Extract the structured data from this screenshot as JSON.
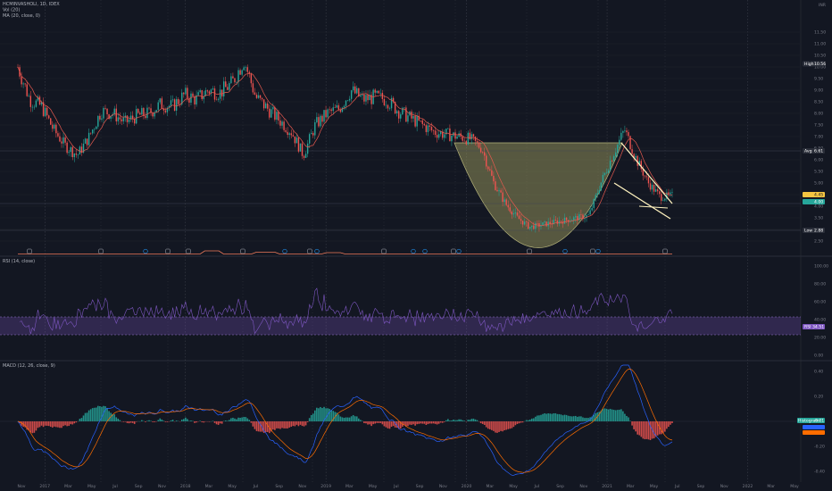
{
  "header": {
    "symbol": "HCMINVASHOLI, 1D, IDEX",
    "volume_indicator": "Vol (20)",
    "ma_indicator": "MA (20, close, 0)",
    "currency": "INR"
  },
  "price_axis": {
    "ticks": [
      "11.50",
      "11.00",
      "10.50",
      "10.00",
      "9.50",
      "9.00",
      "8.50",
      "8.00",
      "7.50",
      "7.00",
      "6.50",
      "6.00",
      "5.50",
      "5.00",
      "4.50",
      "4.00",
      "3.50",
      "3.00",
      "2.50"
    ],
    "high_label": "High",
    "high_value": "10.56",
    "avg_label": "Avg",
    "avg_value": "6.61",
    "last_value": "4.45",
    "close_value": "4.00",
    "low_label": "Low",
    "low_value": "2.88"
  },
  "rsi": {
    "title": "RSI (14, close)",
    "ticks": [
      "100.00",
      "80.00",
      "60.00",
      "40.00",
      "20.00",
      "0.00"
    ],
    "value_label": "RSI",
    "value": "34.51",
    "color": "#7e57c2"
  },
  "macd": {
    "title": "MACD (12, 26, close, 9)",
    "ticks": [
      "0.40",
      "0.20",
      "0.00",
      "-0.20",
      "-0.40"
    ],
    "histogram_label": "Histogram",
    "histogram_value": "0.01",
    "macd_color": "#2962ff",
    "signal_color": "#ff6d00",
    "hist_up_color": "#26a69a",
    "hist_down_color": "#ef5350"
  },
  "x_axis": {
    "labels": [
      "Nov",
      "2017",
      "Mar",
      "May",
      "Jul",
      "Sep",
      "Nov",
      "2018",
      "Mar",
      "May",
      "Jul",
      "Sep",
      "Nov",
      "2019",
      "Mar",
      "May",
      "Jul",
      "Sep",
      "Nov",
      "2020",
      "Mar",
      "May",
      "Jul",
      "Sep",
      "Nov",
      "2021",
      "Mar",
      "May",
      "Jul",
      "Sep",
      "Nov",
      "2022",
      "Mar",
      "May"
    ]
  },
  "chart_data": {
    "type": "line",
    "x": [
      "2016-11",
      "2016-12",
      "2017-01",
      "2017-02",
      "2017-03",
      "2017-04",
      "2017-05",
      "2017-06",
      "2017-07",
      "2017-08",
      "2017-09",
      "2017-10",
      "2017-11",
      "2017-12",
      "2018-01",
      "2018-02",
      "2018-03",
      "2018-04",
      "2018-05",
      "2018-06",
      "2018-07",
      "2018-08",
      "2018-09",
      "2018-10",
      "2018-11",
      "2018-12",
      "2019-01",
      "2019-02",
      "2019-03",
      "2019-04",
      "2019-05",
      "2019-06",
      "2019-07",
      "2019-08",
      "2019-09",
      "2019-10",
      "2019-11",
      "2019-12",
      "2020-01",
      "2020-02",
      "2020-03",
      "2020-04",
      "2020-05",
      "2020-06",
      "2020-07",
      "2020-08",
      "2020-09",
      "2020-10",
      "2020-11",
      "2020-12",
      "2021-01",
      "2021-02",
      "2021-03",
      "2021-04",
      "2021-05",
      "2021-06"
    ],
    "series": [
      {
        "values": [
          10.0,
          8.6,
          8.3,
          7.3,
          6.6,
          6.2,
          7.0,
          8.1,
          8.0,
          7.6,
          7.9,
          8.0,
          8.4,
          8.3,
          8.8,
          8.6,
          9.0,
          8.9,
          9.3,
          10.3,
          8.7,
          8.2,
          7.7,
          7.2,
          6.2,
          7.5,
          8.0,
          8.2,
          9.0,
          8.6,
          8.7,
          8.6,
          8.1,
          7.8,
          7.5,
          7.2,
          7.1,
          7.0,
          6.9,
          6.5,
          5.0,
          4.1,
          3.5,
          3.1,
          3.2,
          3.3,
          3.4,
          3.5,
          3.6,
          5.0,
          6.2,
          7.3,
          6.0,
          5.0,
          4.4,
          4.45
        ]
      }
    ],
    "ylim": [
      2.5,
      11.5
    ],
    "grid": true,
    "annotations": [
      "cup-and-handle curve",
      "falling wedge trendlines"
    ]
  }
}
